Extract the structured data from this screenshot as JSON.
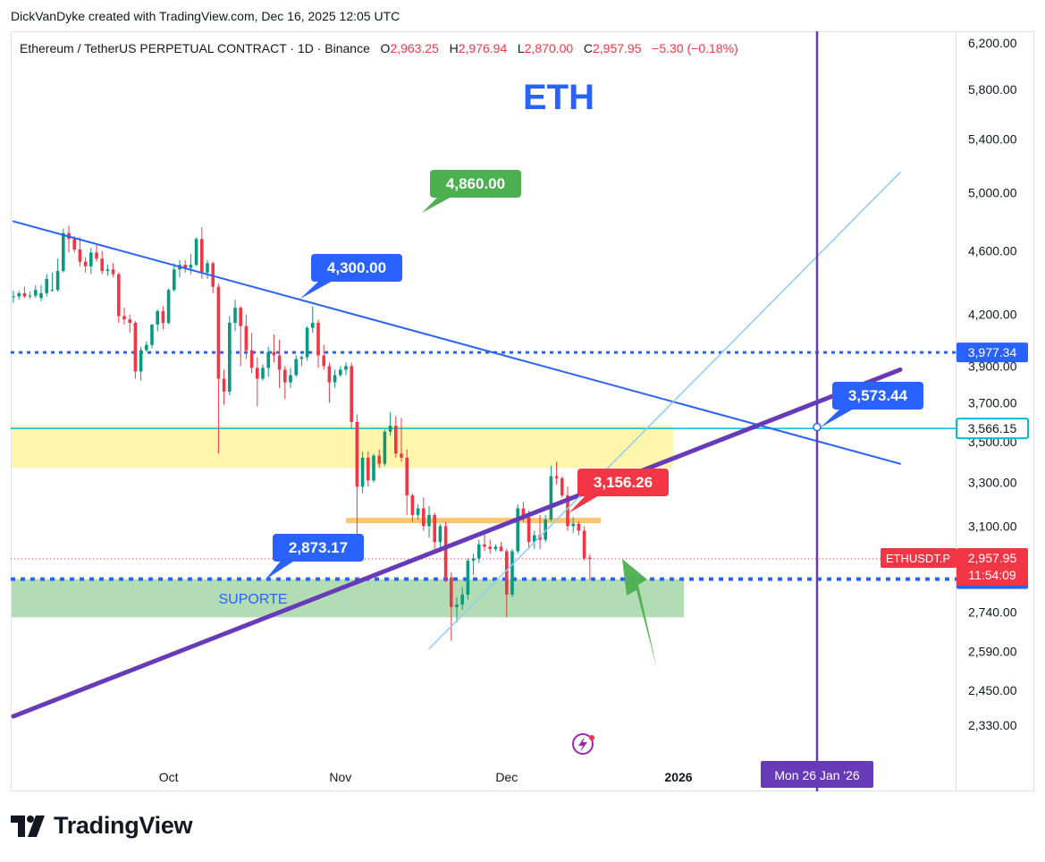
{
  "credit": "DickVanDyke created with TradingView.com, Dec 16, 2025 12:05 UTC",
  "symbol": {
    "name": "Ethereum / TetherUS PERPETUAL CONTRACT · 1D · Binance",
    "o_label": "O",
    "o": "2,963.25",
    "h_label": "H",
    "h": "2,976.94",
    "l_label": "L",
    "l": "2,870.00",
    "c_label": "C",
    "c": "2,957.95",
    "change": "−5.30 (−0.18%)"
  },
  "colors": {
    "up": "#089981",
    "down": "#f23645",
    "trend_blue": "#2962ff",
    "purple": "#673ab7",
    "green_label": "#4caf50",
    "cyan": "#00bcd4",
    "support_zone": "#a5d6a7",
    "resistance_zone": "#fff59d",
    "orange": "#ffb74d"
  },
  "chart_data": {
    "type": "candlestick",
    "title": "ETH",
    "y_scale": "log",
    "ylim": [
      2230,
      6400
    ],
    "y_ticks": [
      "6,200.00",
      "5,800.00",
      "5,400.00",
      "5,000.00",
      "4,600.00",
      "4,200.00",
      "3,900.00",
      "3,700.00",
      "3,500.00",
      "3,300.00",
      "3,100.00",
      "2,740.00",
      "2,590.00",
      "2,450.00",
      "2,330.00"
    ],
    "y_tick_values": [
      6200,
      5800,
      5400,
      5000,
      4600,
      4200,
      3900,
      3700,
      3500,
      3300,
      3100,
      2740,
      2590,
      2450,
      2330
    ],
    "x_range": [
      "2025-09-03",
      "2026-02-10"
    ],
    "x_ticks": [
      {
        "label": "Oct",
        "date": "2025-10-01"
      },
      {
        "label": "Nov",
        "date": "2025-11-01"
      },
      {
        "label": "Dec",
        "date": "2025-12-01"
      },
      {
        "label": "2026",
        "date": "2026-01-01"
      }
    ],
    "candles": [
      {
        "date": "2025-09-03",
        "o": 4310,
        "h": 4345,
        "l": 4270,
        "c": 4310
      },
      {
        "date": "2025-09-04",
        "o": 4310,
        "h": 4345,
        "l": 4290,
        "c": 4330
      },
      {
        "date": "2025-09-05",
        "o": 4330,
        "h": 4370,
        "l": 4300,
        "c": 4310
      },
      {
        "date": "2025-09-06",
        "o": 4310,
        "h": 4340,
        "l": 4295,
        "c": 4315
      },
      {
        "date": "2025-09-07",
        "o": 4315,
        "h": 4380,
        "l": 4300,
        "c": 4350
      },
      {
        "date": "2025-09-08",
        "o": 4300,
        "h": 4380,
        "l": 4280,
        "c": 4330
      },
      {
        "date": "2025-09-09",
        "o": 4330,
        "h": 4450,
        "l": 4310,
        "c": 4420
      },
      {
        "date": "2025-09-10",
        "o": 4350,
        "h": 4460,
        "l": 4340,
        "c": 4350
      },
      {
        "date": "2025-09-11",
        "o": 4350,
        "h": 4550,
        "l": 4340,
        "c": 4470
      },
      {
        "date": "2025-09-12",
        "o": 4470,
        "h": 4750,
        "l": 4460,
        "c": 4720
      },
      {
        "date": "2025-09-13",
        "o": 4720,
        "h": 4770,
        "l": 4590,
        "c": 4680
      },
      {
        "date": "2025-09-14",
        "o": 4680,
        "h": 4700,
        "l": 4590,
        "c": 4610
      },
      {
        "date": "2025-09-15",
        "o": 4610,
        "h": 4690,
        "l": 4500,
        "c": 4530
      },
      {
        "date": "2025-09-16",
        "o": 4530,
        "h": 4560,
        "l": 4460,
        "c": 4500
      },
      {
        "date": "2025-09-17",
        "o": 4500,
        "h": 4620,
        "l": 4450,
        "c": 4590
      },
      {
        "date": "2025-09-18",
        "o": 4590,
        "h": 4650,
        "l": 4530,
        "c": 4550
      },
      {
        "date": "2025-09-19",
        "o": 4550,
        "h": 4600,
        "l": 4450,
        "c": 4470
      },
      {
        "date": "2025-09-20",
        "o": 4470,
        "h": 4510,
        "l": 4440,
        "c": 4480
      },
      {
        "date": "2025-09-21",
        "o": 4480,
        "h": 4520,
        "l": 4430,
        "c": 4450
      },
      {
        "date": "2025-09-22",
        "o": 4450,
        "h": 4460,
        "l": 4150,
        "c": 4190
      },
      {
        "date": "2025-09-23",
        "o": 4190,
        "h": 4240,
        "l": 4140,
        "c": 4170
      },
      {
        "date": "2025-09-24",
        "o": 4170,
        "h": 4200,
        "l": 4090,
        "c": 4150
      },
      {
        "date": "2025-09-25",
        "o": 4150,
        "h": 4160,
        "l": 3830,
        "c": 3870
      },
      {
        "date": "2025-09-26",
        "o": 3870,
        "h": 4010,
        "l": 3820,
        "c": 3990
      },
      {
        "date": "2025-09-27",
        "o": 3990,
        "h": 4040,
        "l": 3980,
        "c": 4020
      },
      {
        "date": "2025-09-28",
        "o": 4020,
        "h": 4140,
        "l": 4000,
        "c": 4140
      },
      {
        "date": "2025-09-29",
        "o": 4140,
        "h": 4230,
        "l": 4100,
        "c": 4220
      },
      {
        "date": "2025-09-30",
        "o": 4220,
        "h": 4250,
        "l": 4110,
        "c": 4150
      },
      {
        "date": "2025-10-01",
        "o": 4150,
        "h": 4360,
        "l": 4140,
        "c": 4350
      },
      {
        "date": "2025-10-02",
        "o": 4350,
        "h": 4520,
        "l": 4340,
        "c": 4480
      },
      {
        "date": "2025-10-03",
        "o": 4480,
        "h": 4540,
        "l": 4430,
        "c": 4510
      },
      {
        "date": "2025-10-04",
        "o": 4510,
        "h": 4540,
        "l": 4460,
        "c": 4490
      },
      {
        "date": "2025-10-05",
        "o": 4490,
        "h": 4580,
        "l": 4450,
        "c": 4510
      },
      {
        "date": "2025-10-06",
        "o": 4510,
        "h": 4690,
        "l": 4500,
        "c": 4680
      },
      {
        "date": "2025-10-07",
        "o": 4680,
        "h": 4760,
        "l": 4420,
        "c": 4460
      },
      {
        "date": "2025-10-08",
        "o": 4460,
        "h": 4540,
        "l": 4420,
        "c": 4520
      },
      {
        "date": "2025-10-09",
        "o": 4520,
        "h": 4530,
        "l": 4330,
        "c": 4370
      },
      {
        "date": "2025-10-10",
        "o": 4370,
        "h": 4390,
        "l": 3440,
        "c": 3830
      },
      {
        "date": "2025-10-11",
        "o": 3830,
        "h": 3880,
        "l": 3690,
        "c": 3760
      },
      {
        "date": "2025-10-12",
        "o": 3760,
        "h": 4190,
        "l": 3740,
        "c": 4150
      },
      {
        "date": "2025-10-13",
        "o": 4150,
        "h": 4290,
        "l": 4100,
        "c": 4240
      },
      {
        "date": "2025-10-14",
        "o": 4240,
        "h": 4250,
        "l": 3900,
        "c": 4130
      },
      {
        "date": "2025-10-15",
        "o": 4130,
        "h": 4200,
        "l": 3940,
        "c": 3990
      },
      {
        "date": "2025-10-16",
        "o": 3990,
        "h": 4090,
        "l": 3860,
        "c": 3890
      },
      {
        "date": "2025-10-17",
        "o": 3890,
        "h": 3950,
        "l": 3680,
        "c": 3830
      },
      {
        "date": "2025-10-18",
        "o": 3830,
        "h": 3910,
        "l": 3820,
        "c": 3890
      },
      {
        "date": "2025-10-19",
        "o": 3890,
        "h": 4010,
        "l": 3840,
        "c": 3980
      },
      {
        "date": "2025-10-20",
        "o": 3980,
        "h": 4080,
        "l": 3920,
        "c": 3960
      },
      {
        "date": "2025-10-21",
        "o": 3960,
        "h": 4050,
        "l": 3780,
        "c": 3880
      },
      {
        "date": "2025-10-22",
        "o": 3880,
        "h": 3900,
        "l": 3720,
        "c": 3810
      },
      {
        "date": "2025-10-23",
        "o": 3810,
        "h": 3890,
        "l": 3780,
        "c": 3850
      },
      {
        "date": "2025-10-24",
        "o": 3850,
        "h": 3960,
        "l": 3840,
        "c": 3940
      },
      {
        "date": "2025-10-25",
        "o": 3940,
        "h": 3960,
        "l": 3900,
        "c": 3950
      },
      {
        "date": "2025-10-26",
        "o": 3950,
        "h": 4130,
        "l": 3930,
        "c": 4120
      },
      {
        "date": "2025-10-27",
        "o": 4120,
        "h": 4250,
        "l": 4090,
        "c": 4150
      },
      {
        "date": "2025-10-28",
        "o": 4150,
        "h": 4170,
        "l": 3890,
        "c": 3960
      },
      {
        "date": "2025-10-29",
        "o": 3960,
        "h": 4020,
        "l": 3880,
        "c": 3900
      },
      {
        "date": "2025-10-30",
        "o": 3900,
        "h": 3920,
        "l": 3700,
        "c": 3810
      },
      {
        "date": "2025-10-31",
        "o": 3810,
        "h": 3880,
        "l": 3780,
        "c": 3850
      },
      {
        "date": "2025-11-01",
        "o": 3850,
        "h": 3900,
        "l": 3840,
        "c": 3880
      },
      {
        "date": "2025-11-02",
        "o": 3880,
        "h": 3920,
        "l": 3850,
        "c": 3900
      },
      {
        "date": "2025-11-03",
        "o": 3900,
        "h": 3920,
        "l": 3570,
        "c": 3600
      },
      {
        "date": "2025-11-04",
        "o": 3600,
        "h": 3640,
        "l": 3060,
        "c": 3280
      },
      {
        "date": "2025-11-05",
        "o": 3280,
        "h": 3450,
        "l": 3250,
        "c": 3420
      },
      {
        "date": "2025-11-06",
        "o": 3420,
        "h": 3450,
        "l": 3280,
        "c": 3310
      },
      {
        "date": "2025-11-07",
        "o": 3310,
        "h": 3440,
        "l": 3300,
        "c": 3430
      },
      {
        "date": "2025-11-08",
        "o": 3430,
        "h": 3460,
        "l": 3370,
        "c": 3390
      },
      {
        "date": "2025-11-09",
        "o": 3390,
        "h": 3560,
        "l": 3380,
        "c": 3550
      },
      {
        "date": "2025-11-10",
        "o": 3550,
        "h": 3650,
        "l": 3530,
        "c": 3580
      },
      {
        "date": "2025-11-11",
        "o": 3580,
        "h": 3630,
        "l": 3420,
        "c": 3440
      },
      {
        "date": "2025-11-12",
        "o": 3440,
        "h": 3620,
        "l": 3400,
        "c": 3420
      },
      {
        "date": "2025-11-13",
        "o": 3420,
        "h": 3460,
        "l": 3150,
        "c": 3240
      },
      {
        "date": "2025-11-14",
        "o": 3240,
        "h": 3250,
        "l": 3120,
        "c": 3150
      },
      {
        "date": "2025-11-15",
        "o": 3150,
        "h": 3200,
        "l": 3130,
        "c": 3180
      },
      {
        "date": "2025-11-16",
        "o": 3180,
        "h": 3230,
        "l": 3080,
        "c": 3100
      },
      {
        "date": "2025-11-17",
        "o": 3100,
        "h": 3190,
        "l": 3050,
        "c": 3150
      },
      {
        "date": "2025-11-18",
        "o": 3150,
        "h": 3160,
        "l": 2980,
        "c": 3030
      },
      {
        "date": "2025-11-19",
        "o": 3030,
        "h": 3110,
        "l": 3000,
        "c": 3100
      },
      {
        "date": "2025-11-20",
        "o": 3100,
        "h": 3120,
        "l": 2860,
        "c": 2880
      },
      {
        "date": "2025-11-21",
        "o": 2880,
        "h": 2900,
        "l": 2630,
        "c": 2760
      },
      {
        "date": "2025-11-22",
        "o": 2760,
        "h": 2800,
        "l": 2700,
        "c": 2770
      },
      {
        "date": "2025-11-23",
        "o": 2770,
        "h": 2840,
        "l": 2750,
        "c": 2810
      },
      {
        "date": "2025-11-24",
        "o": 2810,
        "h": 2960,
        "l": 2790,
        "c": 2950
      },
      {
        "date": "2025-11-25",
        "o": 2950,
        "h": 2980,
        "l": 2890,
        "c": 2960
      },
      {
        "date": "2025-11-26",
        "o": 2960,
        "h": 3040,
        "l": 2940,
        "c": 3020
      },
      {
        "date": "2025-11-27",
        "o": 3020,
        "h": 3070,
        "l": 2990,
        "c": 3010
      },
      {
        "date": "2025-11-28",
        "o": 3010,
        "h": 3040,
        "l": 2980,
        "c": 3000
      },
      {
        "date": "2025-11-29",
        "o": 3000,
        "h": 3020,
        "l": 2990,
        "c": 3010
      },
      {
        "date": "2025-11-30",
        "o": 3010,
        "h": 3030,
        "l": 2990,
        "c": 2990
      },
      {
        "date": "2025-12-01",
        "o": 2990,
        "h": 3000,
        "l": 2720,
        "c": 2810
      },
      {
        "date": "2025-12-02",
        "o": 2810,
        "h": 3000,
        "l": 2800,
        "c": 2990
      },
      {
        "date": "2025-12-03",
        "o": 2990,
        "h": 3200,
        "l": 2980,
        "c": 3180
      },
      {
        "date": "2025-12-04",
        "o": 3180,
        "h": 3210,
        "l": 3120,
        "c": 3140
      },
      {
        "date": "2025-12-05",
        "o": 3140,
        "h": 3170,
        "l": 3000,
        "c": 3030
      },
      {
        "date": "2025-12-06",
        "o": 3030,
        "h": 3080,
        "l": 3000,
        "c": 3060
      },
      {
        "date": "2025-12-07",
        "o": 3060,
        "h": 3150,
        "l": 3000,
        "c": 3040
      },
      {
        "date": "2025-12-08",
        "o": 3040,
        "h": 3150,
        "l": 3030,
        "c": 3130
      },
      {
        "date": "2025-12-09",
        "o": 3130,
        "h": 3380,
        "l": 3120,
        "c": 3330
      },
      {
        "date": "2025-12-10",
        "o": 3330,
        "h": 3400,
        "l": 3290,
        "c": 3320
      },
      {
        "date": "2025-12-11",
        "o": 3320,
        "h": 3330,
        "l": 3230,
        "c": 3240
      },
      {
        "date": "2025-12-12",
        "o": 3240,
        "h": 3280,
        "l": 3080,
        "c": 3100
      },
      {
        "date": "2025-12-13",
        "o": 3100,
        "h": 3140,
        "l": 3070,
        "c": 3110
      },
      {
        "date": "2025-12-14",
        "o": 3110,
        "h": 3120,
        "l": 3060,
        "c": 3080
      },
      {
        "date": "2025-12-15",
        "o": 3080,
        "h": 3100,
        "l": 2950,
        "c": 2960
      },
      {
        "date": "2025-12-16",
        "o": 2963.25,
        "h": 2976.94,
        "l": 2870,
        "c": 2957.95
      }
    ],
    "levels": [
      {
        "name": "horizontal-dotted-3977",
        "value": 3977.34,
        "style": "dotted",
        "color": "#2962ff",
        "label": "3,977.34"
      },
      {
        "name": "cyan-line-3566",
        "value": 3566.15,
        "style": "solid",
        "color": "#00bcd4",
        "label": "3,566.15"
      },
      {
        "name": "support-dotted-2873",
        "value": 2873.17,
        "style": "dotted",
        "color": "#2962ff",
        "label": "2,873.17"
      },
      {
        "name": "last-price",
        "value": 2957.95,
        "style": "dotted-thin",
        "color": "#f23645",
        "label": "2,957.95"
      }
    ],
    "zones": [
      {
        "name": "resistance-zone",
        "from_date": "2025-09-03",
        "to_date": "2025-12-31",
        "y_top": 3580,
        "y_bottom": 3370,
        "color": "#fff59d"
      },
      {
        "name": "support-zone",
        "from_date": "2025-09-03",
        "to_date": "2026-01-02",
        "y_top": 2873,
        "y_bottom": 2720,
        "color": "#a5d6a7",
        "label": "SUPORTE"
      }
    ],
    "orange_level": {
      "from_date": "2025-11-02",
      "to_date": "2025-12-18",
      "value": 3125,
      "color": "#ffb74d"
    },
    "trendlines": [
      {
        "name": "descending-resistance",
        "p1": {
          "date": "2025-09-03",
          "y": 4800
        },
        "p2": {
          "date": "2026-02-10",
          "y": 3390
        },
        "color": "#2962ff"
      },
      {
        "name": "ascending-support-purple",
        "p1": {
          "date": "2025-09-03",
          "y": 2360
        },
        "p2": {
          "date": "2026-02-10",
          "y": 3880
        },
        "color": "#673ab7"
      },
      {
        "name": "thin-ascending-channel",
        "p1": {
          "date": "2025-11-17",
          "y": 2600
        },
        "p2": {
          "date": "2026-02-10",
          "y": 5150
        },
        "color": "#90caf9"
      }
    ],
    "vertical_marker": {
      "date": "2026-01-26",
      "label": "Mon 26 Jan '26",
      "color": "#673ab7"
    },
    "callouts": [
      {
        "name": "callout-4860",
        "text": "4,860.00",
        "color": "#4caf50",
        "date": "2025-11-27",
        "y": 4860
      },
      {
        "name": "callout-4300",
        "text": "4,300.00",
        "color": "#2962ff",
        "date": "2025-10-30",
        "y": 4300
      },
      {
        "name": "callout-3573",
        "text": "3,573.44",
        "color": "#2962ff",
        "date": "2026-01-26",
        "y": 3573.44
      },
      {
        "name": "callout-3156",
        "text": "3,156.26",
        "color": "#f23645",
        "date": "2025-12-12",
        "y": 3156.26
      },
      {
        "name": "callout-2873",
        "text": "2,873.17",
        "color": "#2962ff",
        "date": "2025-10-21",
        "y": 2873.17
      }
    ],
    "price_tags": {
      "symbol_tag": "ETHUSDT.P",
      "last_price": "2,957.95",
      "countdown": "11:54:09"
    }
  }
}
